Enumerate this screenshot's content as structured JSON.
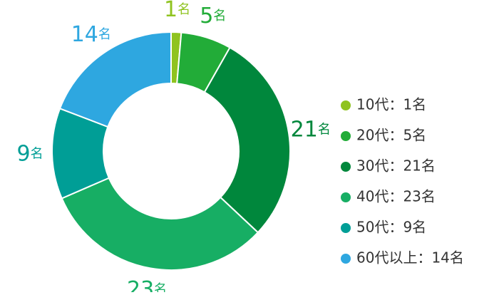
{
  "chart_data": {
    "type": "donut",
    "categories": [
      "10代：1名",
      "20代：5名",
      "30代：21名",
      "40代：23名",
      "50代：9名",
      "60代以上：14名"
    ],
    "values": [
      1,
      5,
      21,
      23,
      9,
      14
    ],
    "unit": "名",
    "colors": [
      "#8fc31f",
      "#22ac38",
      "#00873c",
      "#17ae64",
      "#009e96",
      "#2ea7e0"
    ],
    "legend": "right"
  }
}
